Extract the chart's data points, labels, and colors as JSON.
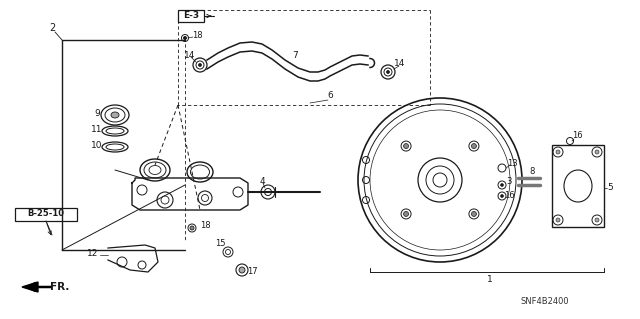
{
  "bg_color": "#ffffff",
  "diagram_code": "SNF4B2400",
  "lc": "#1a1a1a",
  "figsize": [
    6.4,
    3.19
  ],
  "dpi": 100,
  "xlim": [
    0,
    640
  ],
  "ylim": [
    0,
    319
  ]
}
